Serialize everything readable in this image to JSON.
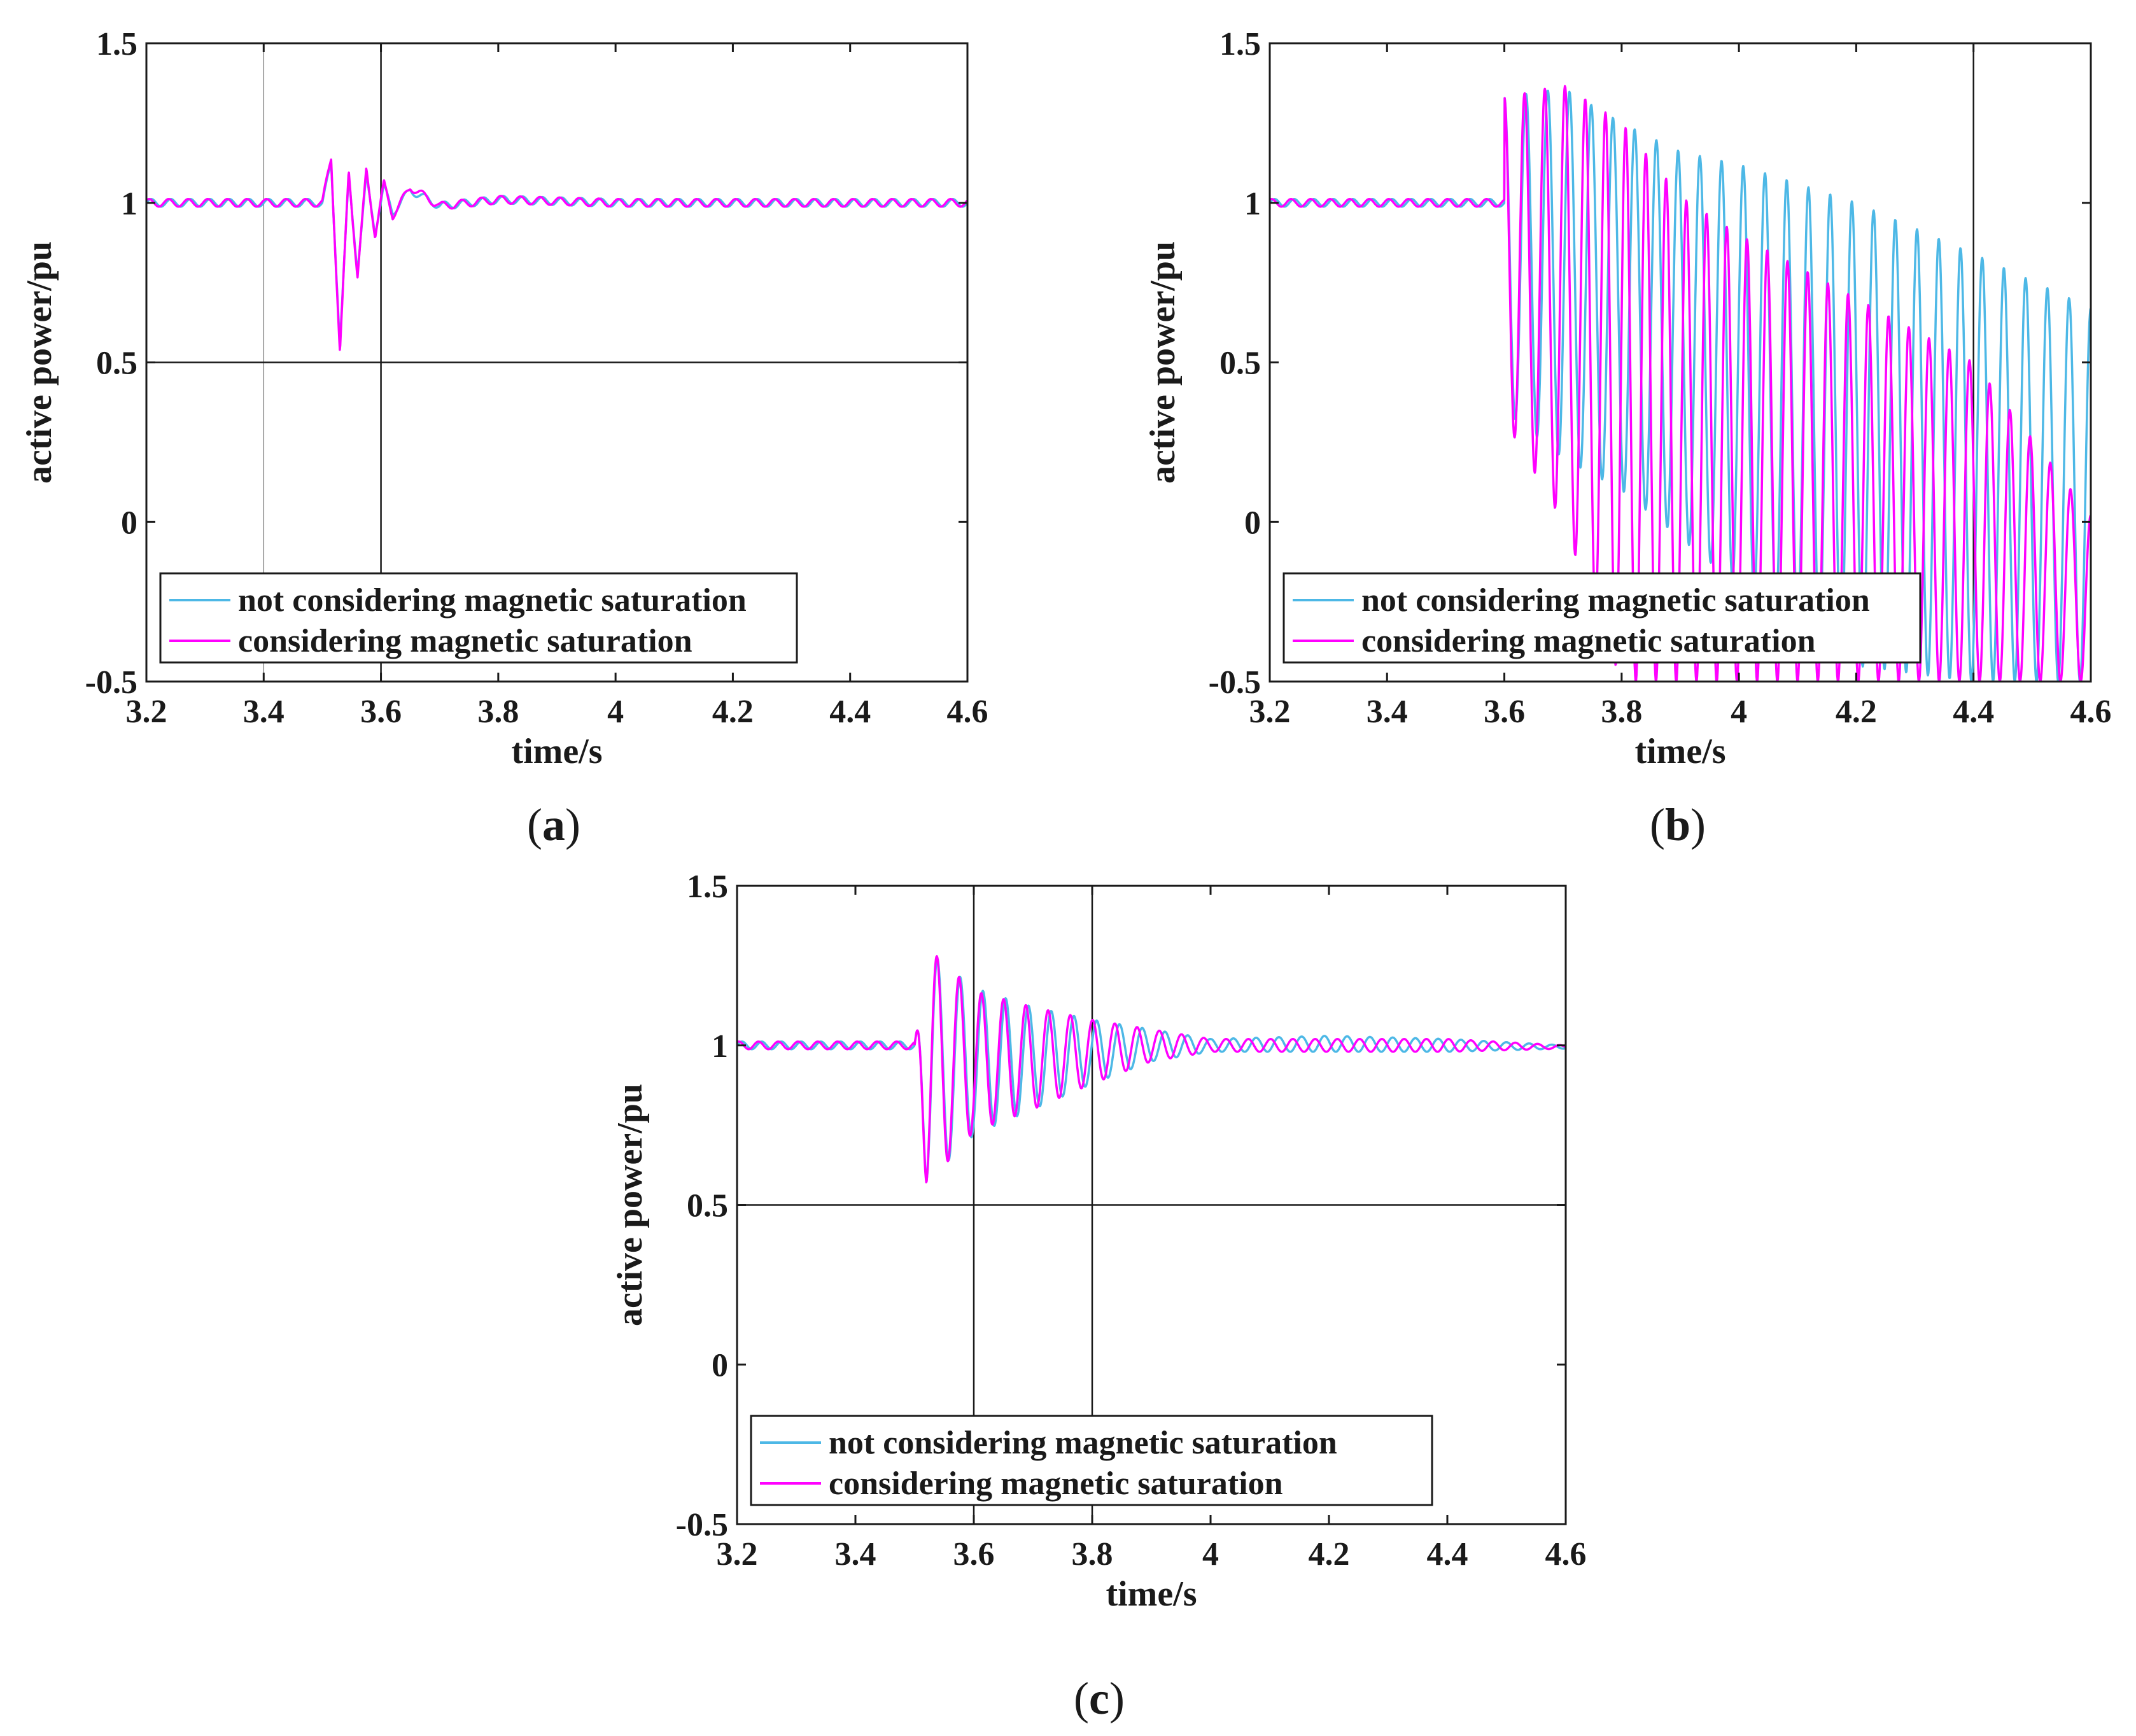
{
  "figure_labels": [
    {
      "open": "(",
      "letter": "a",
      "close": ")"
    },
    {
      "open": "(",
      "letter": "b",
      "close": ")"
    },
    {
      "open": "(",
      "letter": "c",
      "close": ")"
    }
  ],
  "colors": {
    "series1": "#4db8e6",
    "series2": "#ff00ff",
    "axis": "#1a1a1a",
    "cursor": "#1a1a1a"
  },
  "chart_data": [
    {
      "type": "line",
      "panel": "a",
      "title": "",
      "xlabel": "time/s",
      "ylabel": "active power/pu",
      "xlim": [
        3.2,
        4.6
      ],
      "ylim": [
        -0.5,
        1.5
      ],
      "xticks": [
        "3.2",
        "3.4",
        "3.6",
        "3.8",
        "4",
        "4.2",
        "4.4",
        "4.6"
      ],
      "yticks": [
        "-0.5",
        "0",
        "0.5",
        "1",
        "1.5"
      ],
      "cursor_x": [
        3.4,
        3.6
      ],
      "cursor_y": [
        0.5
      ],
      "legend_placement": "bottom-left",
      "series": [
        {
          "name": "not considering magnetic saturation",
          "x": [
            3.2,
            3.3,
            3.4,
            3.45,
            3.5,
            3.515,
            3.53,
            3.545,
            3.56,
            3.575,
            3.59,
            3.605,
            3.62,
            3.65,
            3.7,
            3.8,
            4.0,
            4.2,
            4.4,
            4.6
          ],
          "values": [
            1.0,
            1.0,
            1.0,
            1.0,
            1.0,
            1.12,
            0.56,
            1.08,
            0.79,
            1.08,
            0.91,
            1.05,
            0.97,
            1.04,
            0.99,
            1.01,
            1.0,
            1.0,
            1.0,
            1.0
          ]
        },
        {
          "name": "considering magnetic saturation",
          "x": [
            3.2,
            3.3,
            3.4,
            3.45,
            3.5,
            3.515,
            3.53,
            3.545,
            3.56,
            3.575,
            3.59,
            3.605,
            3.62,
            3.65,
            3.7,
            3.8,
            4.0,
            4.2,
            4.4,
            4.6
          ],
          "values": [
            1.0,
            1.0,
            1.0,
            1.0,
            1.0,
            1.14,
            0.53,
            1.1,
            0.77,
            1.1,
            0.9,
            1.06,
            0.96,
            1.05,
            0.99,
            1.01,
            1.0,
            1.0,
            1.0,
            1.0
          ]
        }
      ]
    },
    {
      "type": "line",
      "panel": "b",
      "title": "",
      "xlabel": "time/s",
      "ylabel": "active power/pu",
      "xlim": [
        3.2,
        4.6
      ],
      "ylim": [
        -0.5,
        1.5
      ],
      "xticks": [
        "3.2",
        "3.4",
        "3.6",
        "3.8",
        "4",
        "4.2",
        "4.4",
        "4.6"
      ],
      "yticks": [
        "-0.5",
        "0",
        "0.5",
        "1",
        "1.5"
      ],
      "cursor_x": [
        4.4
      ],
      "cursor_y": [],
      "legend_placement": "bottom-left",
      "series": [
        {
          "name": "not considering magnetic saturation",
          "envelope_x": [
            3.5,
            3.6,
            3.7,
            3.8,
            3.9,
            4.0,
            4.2,
            4.4,
            4.6
          ],
          "upper": [
            1.0,
            1.33,
            1.36,
            1.25,
            1.16,
            1.12,
            1.0,
            0.84,
            0.67
          ],
          "lower": [
            1.0,
            0.35,
            0.2,
            0.1,
            -0.05,
            -0.2,
            -0.45,
            -0.5,
            -0.5
          ]
        },
        {
          "name": "considering magnetic saturation",
          "envelope_x": [
            3.5,
            3.6,
            3.7,
            3.8,
            3.9,
            4.0,
            4.2,
            4.4,
            4.6
          ],
          "upper": [
            1.0,
            1.33,
            1.37,
            1.25,
            1.02,
            0.9,
            0.7,
            0.5,
            0.02
          ],
          "lower": [
            1.0,
            0.32,
            0.0,
            -0.5,
            -0.5,
            -0.5,
            -0.5,
            -0.5,
            -0.5
          ]
        }
      ]
    },
    {
      "type": "line",
      "panel": "c",
      "title": "",
      "xlabel": "time/s",
      "ylabel": "active power/pu",
      "xlim": [
        3.2,
        4.6
      ],
      "ylim": [
        -0.5,
        1.5
      ],
      "xticks": [
        "3.2",
        "3.4",
        "3.6",
        "3.8",
        "4",
        "4.2",
        "4.4",
        "4.6"
      ],
      "yticks": [
        "-0.5",
        "0",
        "0.5",
        "1",
        "1.5"
      ],
      "cursor_x": [
        3.6,
        3.8
      ],
      "cursor_y": [
        0.5
      ],
      "legend_placement": "bottom-left",
      "series": [
        {
          "name": "not considering magnetic saturation",
          "envelope_x": [
            3.2,
            3.5,
            3.52,
            3.6,
            3.7,
            3.8,
            3.9,
            4.0,
            4.2,
            4.4,
            4.6
          ],
          "upper": [
            1.0,
            1.0,
            1.3,
            1.18,
            1.12,
            1.08,
            1.05,
            1.02,
            1.03,
            1.02,
            1.0
          ],
          "lower": [
            1.0,
            1.0,
            0.57,
            0.72,
            0.8,
            0.88,
            0.95,
            0.98,
            0.98,
            0.98,
            0.99
          ]
        },
        {
          "name": "considering magnetic saturation",
          "envelope_x": [
            3.2,
            3.5,
            3.52,
            3.6,
            3.7,
            3.8,
            3.9,
            4.0,
            4.2,
            4.4,
            4.6
          ],
          "upper": [
            1.0,
            1.0,
            1.31,
            1.17,
            1.12,
            1.08,
            1.05,
            1.02,
            1.02,
            1.02,
            1.0
          ],
          "lower": [
            1.0,
            1.0,
            0.56,
            0.73,
            0.8,
            0.88,
            0.95,
            0.98,
            0.98,
            0.98,
            0.99
          ]
        }
      ]
    }
  ]
}
